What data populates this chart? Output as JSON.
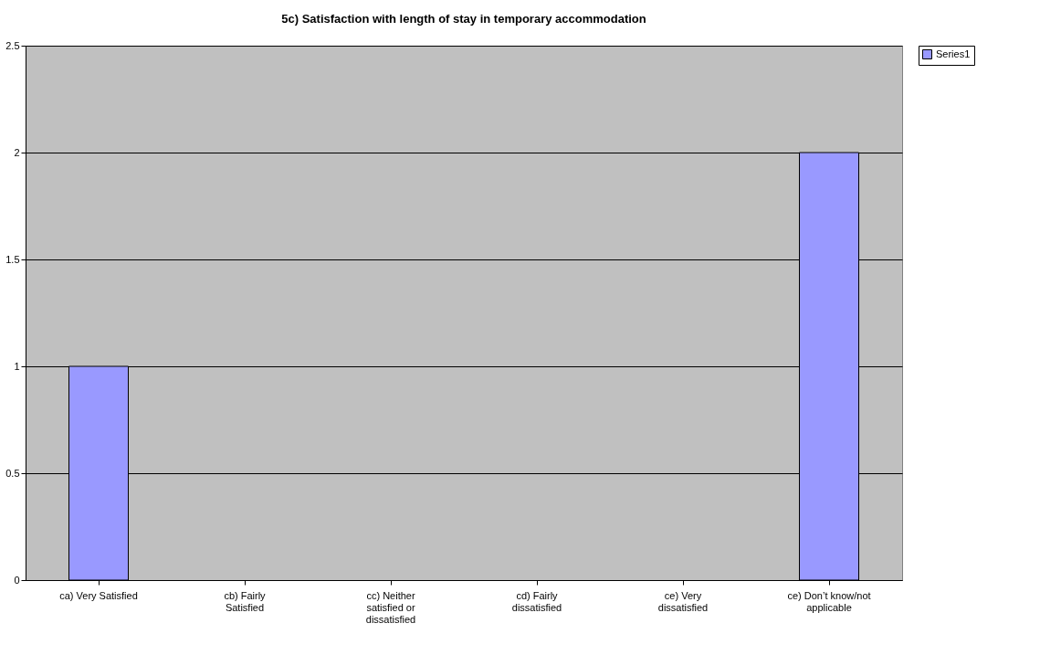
{
  "chart_data": {
    "type": "bar",
    "title": "5c) Satisfaction with length of stay in temporary accommodation",
    "categories": [
      "ca) Very Satisfied",
      "cb) Fairly Satisfied",
      "cc) Neither satisfied or dissatisfied",
      "cd) Fairly dissatisfied",
      "ce) Very dissatisfied",
      "ce) Don’t know/not applicable"
    ],
    "series": [
      {
        "name": "Series1",
        "color": "#9999ff",
        "values": [
          1,
          0,
          0,
          0,
          0,
          2
        ]
      }
    ],
    "ylim": [
      0,
      2.5
    ],
    "yticks": [
      0,
      0.5,
      1,
      1.5,
      2,
      2.5
    ],
    "grid": "y",
    "legend": "right"
  }
}
